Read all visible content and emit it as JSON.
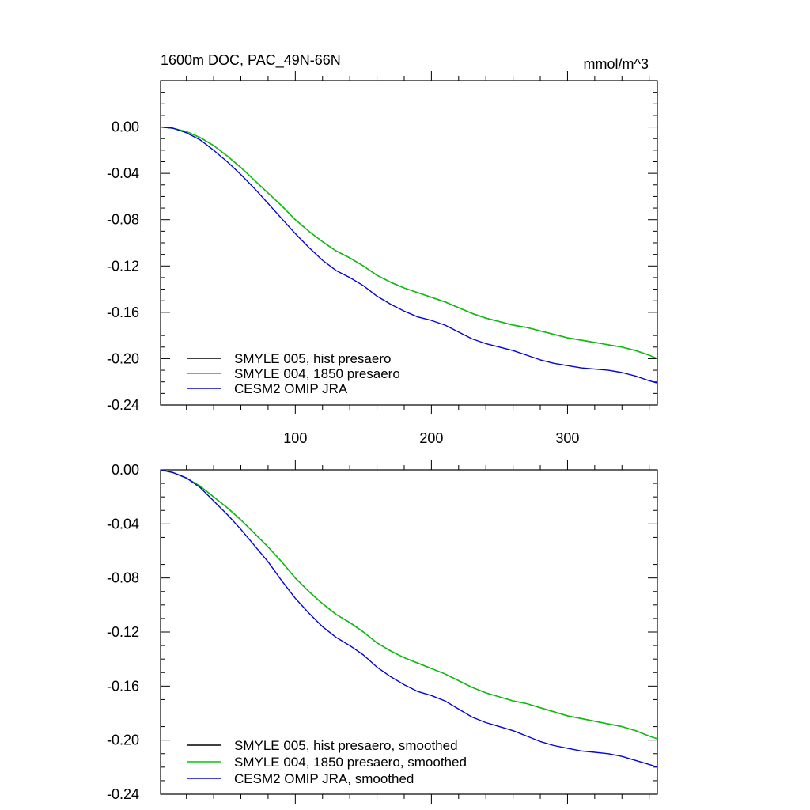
{
  "figure": {
    "title_left": "1600m DOC, PAC_49N-66N",
    "title_right": "mmol/m^3"
  },
  "chart_data": [
    {
      "type": "line",
      "title": "1600m DOC, PAC_49N-66N",
      "units": "mmol/m^3",
      "xlabel": "",
      "ylabel": "",
      "xlim": [
        1,
        366
      ],
      "ylim": [
        -0.24,
        0.04
      ],
      "xticks": [
        100,
        200,
        300
      ],
      "xtick_labels": [
        "100",
        "200",
        "300"
      ],
      "yticks": [
        0.0,
        -0.04,
        -0.08,
        -0.12,
        -0.16,
        -0.2,
        -0.24
      ],
      "ytick_labels": [
        "0.00",
        "-0.04",
        "-0.08",
        "-0.12",
        "-0.16",
        "-0.20",
        "-0.24"
      ],
      "legend_position": "bottom-left",
      "x": [
        1,
        10,
        20,
        30,
        40,
        50,
        60,
        70,
        80,
        90,
        100,
        110,
        120,
        130,
        140,
        150,
        160,
        170,
        180,
        190,
        200,
        210,
        220,
        230,
        240,
        250,
        260,
        270,
        280,
        290,
        300,
        310,
        320,
        330,
        340,
        350,
        360,
        366
      ],
      "series": [
        {
          "name": "SMYLE 005, hist presaero",
          "color": "#000000",
          "values": [
            0.0,
            -0.001,
            -0.004,
            -0.009,
            -0.016,
            -0.025,
            -0.035,
            -0.046,
            -0.057,
            -0.068,
            -0.08,
            -0.09,
            -0.099,
            -0.107,
            -0.113,
            -0.12,
            -0.128,
            -0.134,
            -0.139,
            -0.143,
            -0.147,
            -0.151,
            -0.156,
            -0.161,
            -0.165,
            -0.168,
            -0.171,
            -0.173,
            -0.176,
            -0.179,
            -0.182,
            -0.184,
            -0.186,
            -0.188,
            -0.19,
            -0.193,
            -0.197,
            -0.2
          ]
        },
        {
          "name": "SMYLE 004, 1850 presaero",
          "color": "#00cc00",
          "values": [
            0.0,
            -0.001,
            -0.004,
            -0.009,
            -0.016,
            -0.025,
            -0.035,
            -0.046,
            -0.057,
            -0.068,
            -0.08,
            -0.09,
            -0.099,
            -0.107,
            -0.113,
            -0.12,
            -0.128,
            -0.134,
            -0.139,
            -0.143,
            -0.147,
            -0.151,
            -0.156,
            -0.161,
            -0.165,
            -0.168,
            -0.171,
            -0.173,
            -0.176,
            -0.179,
            -0.182,
            -0.184,
            -0.186,
            -0.188,
            -0.19,
            -0.193,
            -0.197,
            -0.2
          ]
        },
        {
          "name": "CESM2 OMIP JRA",
          "color": "#0000ee",
          "values": [
            0.0,
            -0.001,
            -0.005,
            -0.011,
            -0.02,
            -0.03,
            -0.041,
            -0.053,
            -0.066,
            -0.079,
            -0.092,
            -0.104,
            -0.115,
            -0.124,
            -0.13,
            -0.137,
            -0.146,
            -0.153,
            -0.159,
            -0.164,
            -0.167,
            -0.171,
            -0.177,
            -0.183,
            -0.187,
            -0.19,
            -0.193,
            -0.197,
            -0.201,
            -0.204,
            -0.206,
            -0.208,
            -0.209,
            -0.21,
            -0.212,
            -0.215,
            -0.219,
            -0.221
          ]
        }
      ]
    },
    {
      "type": "line",
      "title": "",
      "xlabel": "",
      "ylabel": "",
      "xlim": [
        1,
        366
      ],
      "ylim": [
        -0.24,
        0.0
      ],
      "xticks": [
        100,
        200,
        300
      ],
      "xtick_labels": [],
      "yticks": [
        0.0,
        -0.04,
        -0.08,
        -0.12,
        -0.16,
        -0.2,
        -0.24
      ],
      "ytick_labels": [
        "0.00",
        "-0.04",
        "-0.08",
        "-0.12",
        "-0.16",
        "-0.20",
        "-0.24"
      ],
      "legend_position": "bottom-left",
      "x": [
        1,
        10,
        20,
        30,
        40,
        50,
        60,
        70,
        80,
        90,
        100,
        110,
        120,
        130,
        140,
        150,
        160,
        170,
        180,
        190,
        200,
        210,
        220,
        230,
        240,
        250,
        260,
        270,
        280,
        290,
        300,
        310,
        320,
        330,
        340,
        350,
        360,
        366
      ],
      "series": [
        {
          "name": "SMYLE 005, hist presaero, smoothed",
          "color": "#000000",
          "values": [
            0.0,
            -0.002,
            -0.006,
            -0.012,
            -0.02,
            -0.028,
            -0.037,
            -0.047,
            -0.057,
            -0.068,
            -0.08,
            -0.09,
            -0.099,
            -0.107,
            -0.113,
            -0.12,
            -0.128,
            -0.134,
            -0.139,
            -0.143,
            -0.147,
            -0.151,
            -0.156,
            -0.161,
            -0.165,
            -0.168,
            -0.171,
            -0.173,
            -0.176,
            -0.179,
            -0.182,
            -0.184,
            -0.186,
            -0.188,
            -0.19,
            -0.193,
            -0.197,
            -0.199
          ]
        },
        {
          "name": "SMYLE 004, 1850 presaero, smoothed",
          "color": "#00cc00",
          "values": [
            0.0,
            -0.002,
            -0.006,
            -0.012,
            -0.02,
            -0.028,
            -0.037,
            -0.047,
            -0.057,
            -0.068,
            -0.08,
            -0.09,
            -0.099,
            -0.107,
            -0.113,
            -0.12,
            -0.128,
            -0.134,
            -0.139,
            -0.143,
            -0.147,
            -0.151,
            -0.156,
            -0.161,
            -0.165,
            -0.168,
            -0.171,
            -0.173,
            -0.176,
            -0.179,
            -0.182,
            -0.184,
            -0.186,
            -0.188,
            -0.19,
            -0.193,
            -0.197,
            -0.199
          ]
        },
        {
          "name": "CESM2 OMIP JRA, smoothed",
          "color": "#0000ee",
          "values": [
            0.0,
            -0.002,
            -0.006,
            -0.013,
            -0.023,
            -0.033,
            -0.044,
            -0.056,
            -0.068,
            -0.082,
            -0.095,
            -0.106,
            -0.116,
            -0.124,
            -0.13,
            -0.137,
            -0.146,
            -0.153,
            -0.159,
            -0.164,
            -0.167,
            -0.171,
            -0.177,
            -0.183,
            -0.187,
            -0.19,
            -0.193,
            -0.197,
            -0.201,
            -0.204,
            -0.206,
            -0.208,
            -0.209,
            -0.21,
            -0.212,
            -0.215,
            -0.218,
            -0.22
          ]
        }
      ]
    }
  ]
}
